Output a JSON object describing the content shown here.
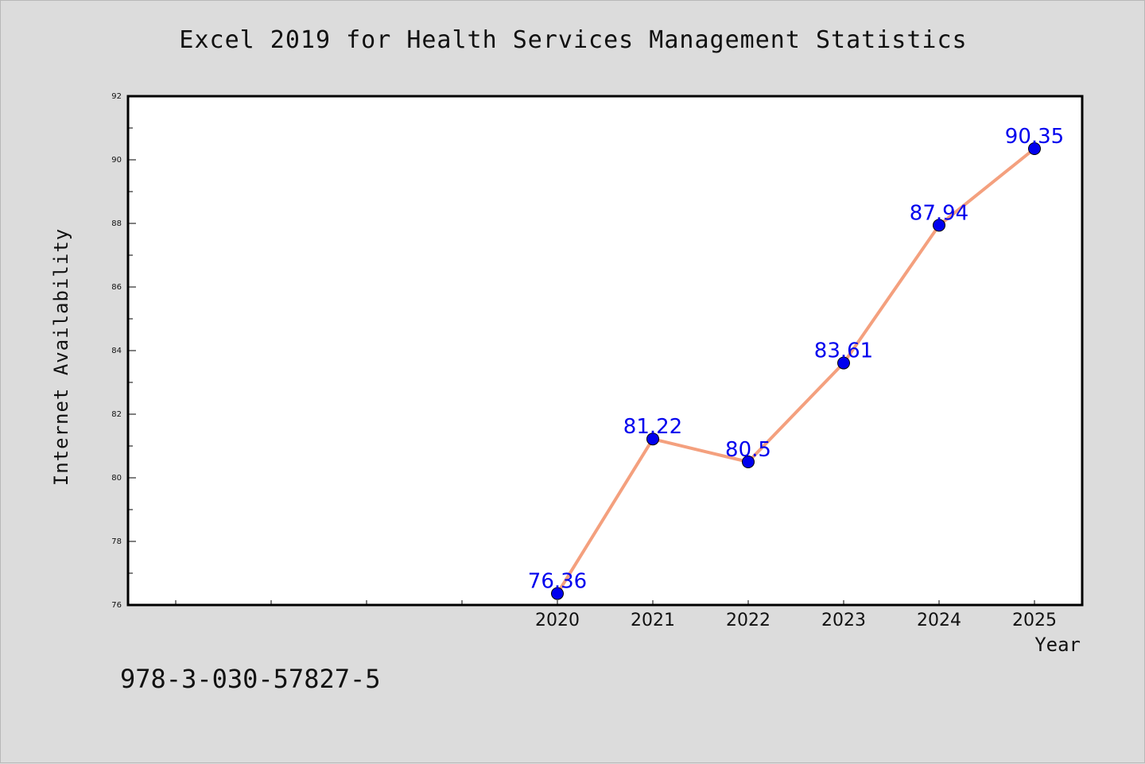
{
  "chart_data": {
    "type": "line",
    "title": "Excel 2019 for Health Services Management Statistics",
    "xlabel": "Year",
    "ylabel": "Internet Availability",
    "categories": [
      "",
      "",
      "",
      "",
      "2020",
      "2021",
      "2022",
      "2023",
      "2024",
      "2025"
    ],
    "x": [
      "2020",
      "2021",
      "2022",
      "2023",
      "2024",
      "2025"
    ],
    "series": [
      {
        "values": [
          76.36,
          81.22,
          80.5,
          83.61,
          87.94,
          90.35
        ]
      }
    ],
    "data_labels": [
      "76.36",
      "81.22",
      "80.5",
      "83.61",
      "87.94",
      "90.35"
    ],
    "ylim": [
      76,
      92
    ],
    "yticks": [
      "76",
      "78",
      "80",
      "82",
      "84",
      "86",
      "88",
      "90",
      "92"
    ],
    "grid": false,
    "line_color": "#f4a07e",
    "marker_color": "#0000ee",
    "label_color": "#0000ee",
    "background_color": "#dcdcdc",
    "plot_background": "#ffffff"
  },
  "footer": {
    "isbn": "978-3-030-57827-5"
  }
}
